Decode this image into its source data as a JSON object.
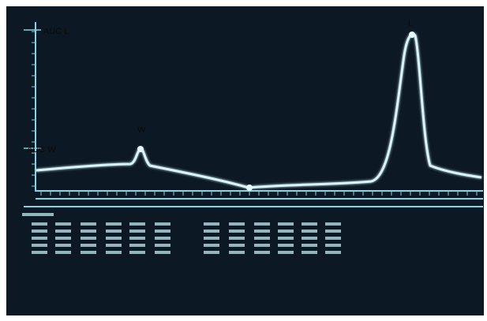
{
  "labels": {
    "auc_l": "AUC L",
    "auc_w": "AUC W",
    "peak_w": "W",
    "peak_l": "L"
  }
}
